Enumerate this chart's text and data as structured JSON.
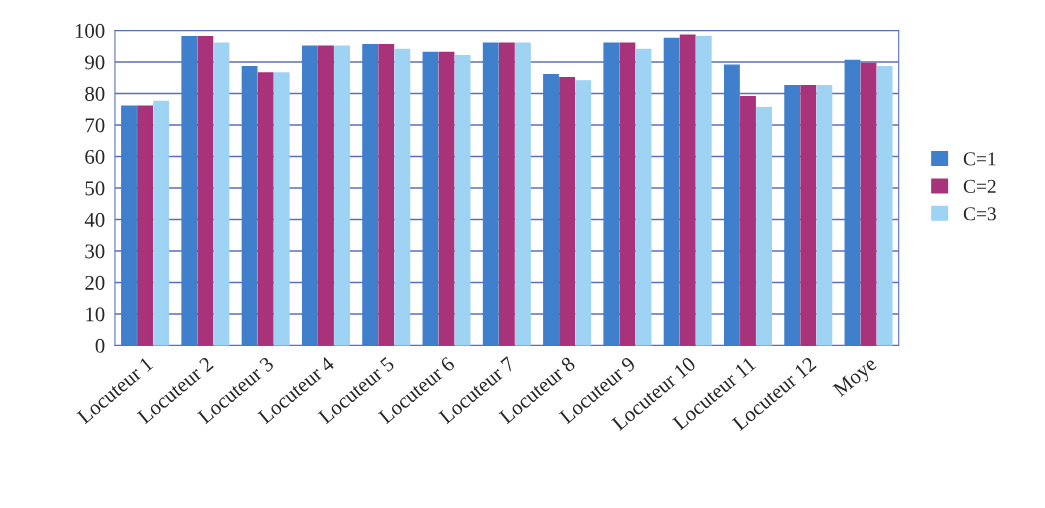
{
  "chart_data": {
    "type": "bar",
    "categories": [
      "Locuteur 1",
      "Locuteur 2",
      "Locuteur 3",
      "Locuteur 4",
      "Locuteur 5",
      "Locuteur 6",
      "Locuteur 7",
      "Locuteur 8",
      "Locuteur 9",
      "Locuteur 10",
      "Locuteur 11",
      "Locuteur 12",
      "Moye"
    ],
    "series": [
      {
        "name": "C=1",
        "color": "#3f7fcc",
        "values": [
          76,
          98,
          88.5,
          95,
          95.5,
          93,
          96,
          86,
          96,
          97.5,
          89,
          82.5,
          90.5
        ]
      },
      {
        "name": "C=2",
        "color": "#a8337a",
        "values": [
          76,
          98,
          86.5,
          95,
          95.5,
          93,
          96,
          85,
          96,
          98.5,
          79,
          82.5,
          89.5
        ]
      },
      {
        "name": "C=3",
        "color": "#9fd3f3",
        "values": [
          77.5,
          96,
          86.5,
          95,
          94,
          92,
          96,
          84,
          94,
          98,
          75.5,
          82.5,
          88.5
        ]
      }
    ],
    "ylim": [
      0,
      100
    ],
    "yticks": [
      0,
      10,
      20,
      30,
      40,
      50,
      60,
      70,
      80,
      90,
      100
    ],
    "grid": "y",
    "legend": "right"
  }
}
